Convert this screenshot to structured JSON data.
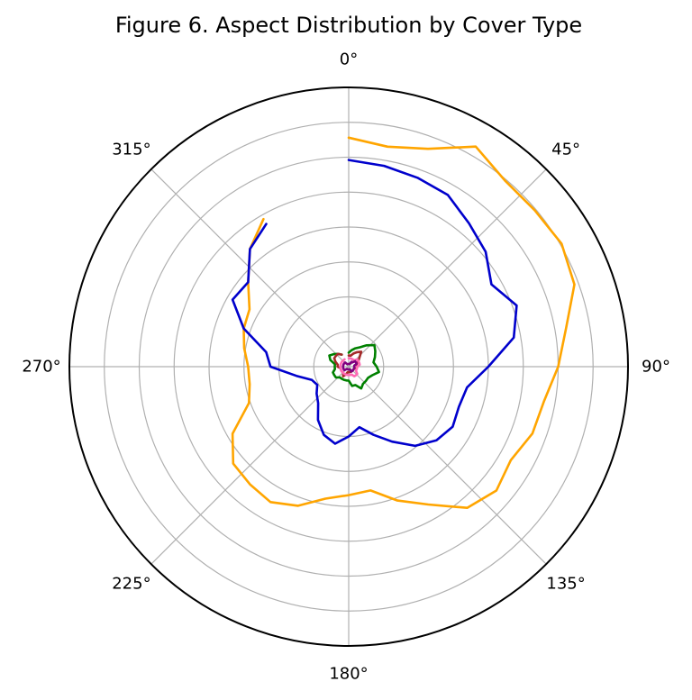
{
  "chart_data": {
    "type": "polar-line",
    "title": "Figure 6. Aspect Distribution by Cover Type",
    "theta_ticks": [
      "0°",
      "45°",
      "90°",
      "135°",
      "180°",
      "225°",
      "270°",
      "315°"
    ],
    "theta_direction": "clockwise",
    "theta_zero": "top",
    "grid": true,
    "r_ticks_shown": false,
    "rlim": [
      0,
      1
    ],
    "r_gridlines": [
      0.125,
      0.25,
      0.375,
      0.5,
      0.625,
      0.75,
      0.875
    ],
    "angles_deg": [
      0,
      10,
      20,
      30,
      40,
      50,
      60,
      70,
      80,
      90,
      100,
      110,
      120,
      130,
      140,
      150,
      160,
      170,
      180,
      190,
      200,
      210,
      220,
      230,
      240,
      250,
      260,
      270,
      280,
      290,
      300,
      310,
      320,
      330
    ],
    "series": [
      {
        "color": "#ffa500",
        "values": [
          0.82,
          0.8,
          0.83,
          0.91,
          0.87,
          0.87,
          0.88,
          0.86,
          0.79,
          0.75,
          0.71,
          0.7,
          0.67,
          0.69,
          0.66,
          0.57,
          0.51,
          0.45,
          0.46,
          0.48,
          0.53,
          0.56,
          0.55,
          0.54,
          0.48,
          0.38,
          0.36,
          0.36,
          0.38,
          0.4,
          0.41,
          0.47,
          0.55,
          0.61
        ]
      },
      {
        "color": "#0000cc",
        "values": [
          0.74,
          0.73,
          0.72,
          0.71,
          0.67,
          0.64,
          0.59,
          0.64,
          0.6,
          0.5,
          0.43,
          0.42,
          0.43,
          0.41,
          0.37,
          0.31,
          0.26,
          0.22,
          0.25,
          0.28,
          0.26,
          0.22,
          0.17,
          0.15,
          0.13,
          0.14,
          0.19,
          0.28,
          0.3,
          0.4,
          0.48,
          0.47,
          0.55,
          0.59
        ]
      },
      {
        "color": "#008000",
        "values": [
          0.05,
          0.06,
          0.07,
          0.08,
          0.1,
          0.12,
          0.11,
          0.1,
          0.09,
          0.1,
          0.11,
          0.09,
          0.08,
          0.08,
          0.08,
          0.09,
          0.07,
          0.07,
          0.05,
          0.05,
          0.05,
          0.05,
          0.05,
          0.06,
          0.06,
          0.06,
          0.05,
          0.05,
          0.05,
          0.07,
          0.08,
          0.07,
          0.06,
          0.05
        ]
      },
      {
        "color": "#a52a2a",
        "values": [
          0.04,
          0.04,
          0.05,
          0.06,
          0.07,
          0.05,
          0.04,
          0.03,
          0.03,
          0.03,
          0.03,
          0.02,
          0.02,
          0.02,
          0.02,
          0.02,
          0.02,
          0.02,
          0.02,
          0.02,
          0.03,
          0.04,
          0.03,
          0.03,
          0.03,
          0.03,
          0.03,
          0.04,
          0.04,
          0.05,
          0.06,
          0.06,
          0.06,
          0.05
        ]
      },
      {
        "color": "#ff69b4",
        "values": [
          0.03,
          0.03,
          0.03,
          0.03,
          0.03,
          0.04,
          0.04,
          0.04,
          0.04,
          0.03,
          0.03,
          0.03,
          0.03,
          0.04,
          0.04,
          0.04,
          0.03,
          0.03,
          0.03,
          0.03,
          0.03,
          0.03,
          0.03,
          0.03,
          0.03,
          0.03,
          0.03,
          0.03,
          0.03,
          0.03,
          0.03,
          0.03,
          0.03,
          0.03
        ]
      },
      {
        "color": "#800080",
        "values": [
          0.01,
          0.01,
          0.01,
          0.02,
          0.02,
          0.03,
          0.03,
          0.03,
          0.02,
          0.02,
          0.02,
          0.02,
          0.02,
          0.02,
          0.02,
          0.02,
          0.01,
          0.01,
          0.01,
          0.01,
          0.01,
          0.01,
          0.01,
          0.02,
          0.02,
          0.02,
          0.02,
          0.02,
          0.02,
          0.02,
          0.02,
          0.02,
          0.02,
          0.01
        ]
      }
    ]
  }
}
